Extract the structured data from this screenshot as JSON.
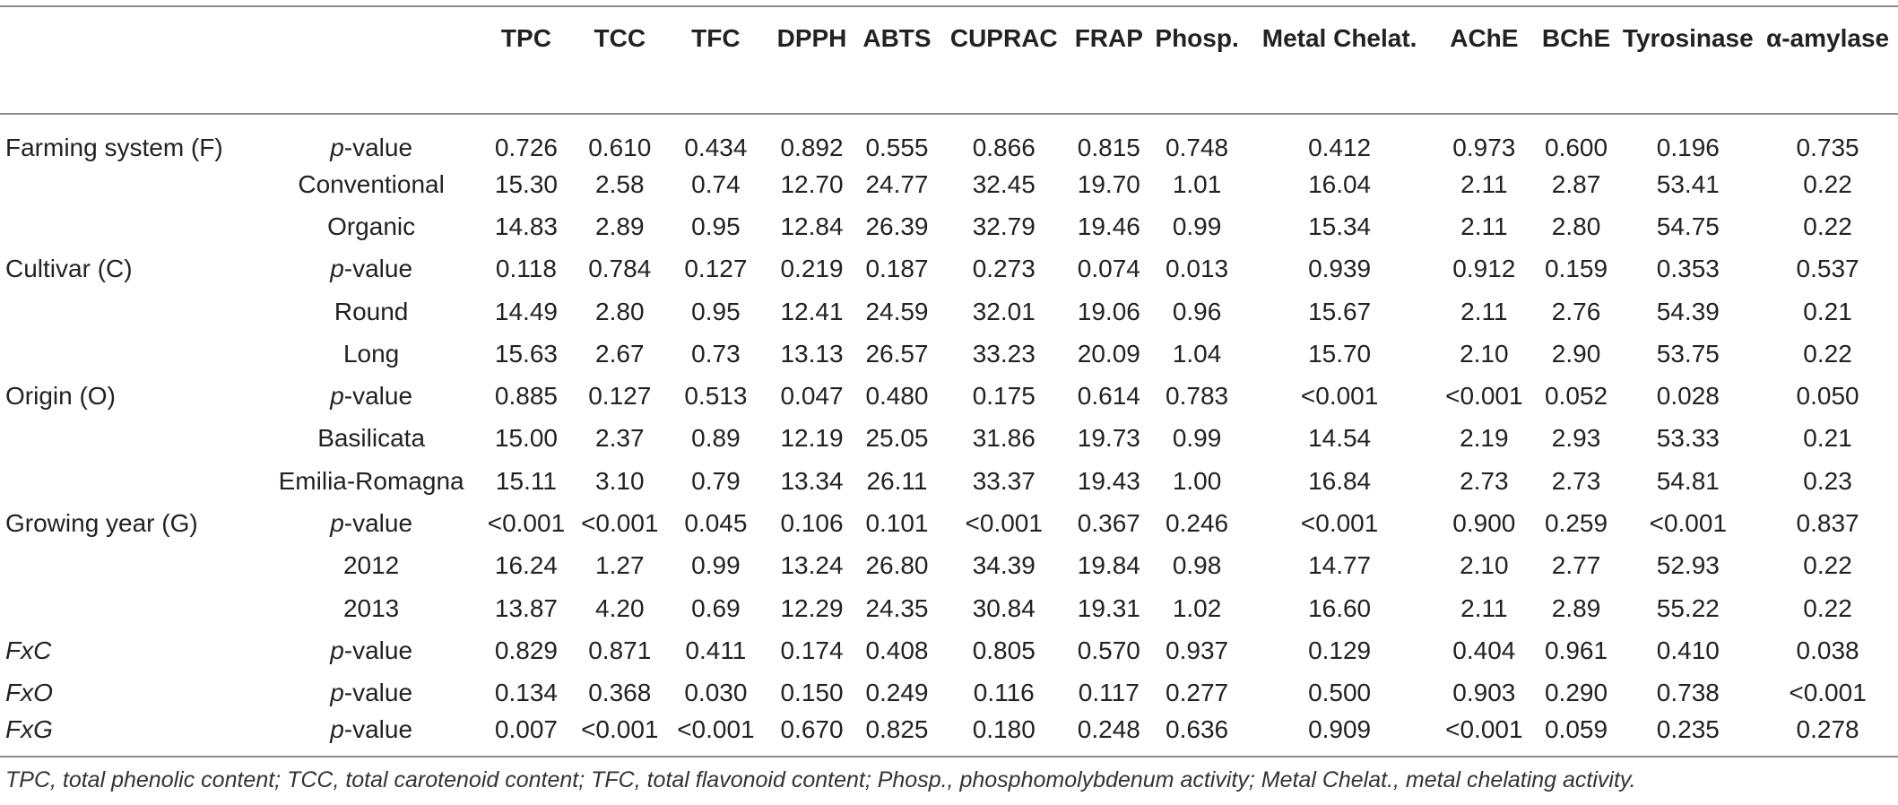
{
  "table": {
    "columns": [
      "TPC",
      "TCC",
      "TFC",
      "DPPH",
      "ABTS",
      "CUPRAC",
      "FRAP",
      "Phosp.",
      "Metal Chelat.",
      "AChE",
      "BChE",
      "Tyrosinase",
      "α-amylase"
    ],
    "rows": [
      {
        "group": "Farming system (F)",
        "group_italic": false,
        "level": "p-value",
        "pvalue": true,
        "values": [
          "0.726",
          "0.610",
          "0.434",
          "0.892",
          "0.555",
          "0.866",
          "0.815",
          "0.748",
          "0.412",
          "0.973",
          "0.600",
          "0.196",
          "0.735"
        ]
      },
      {
        "group": "",
        "level": "Conventional",
        "pvalue": false,
        "values": [
          "15.30",
          "2.58",
          "0.74",
          "12.70",
          "24.77",
          "32.45",
          "19.70",
          "1.01",
          "16.04",
          "2.11",
          "2.87",
          "53.41",
          "0.22"
        ]
      },
      {
        "group": "",
        "level": "Organic",
        "pvalue": false,
        "values": [
          "14.83",
          "2.89",
          "0.95",
          "12.84",
          "26.39",
          "32.79",
          "19.46",
          "0.99",
          "15.34",
          "2.11",
          "2.80",
          "54.75",
          "0.22"
        ]
      },
      {
        "group": "Cultivar (C)",
        "group_italic": false,
        "level": "p-value",
        "pvalue": true,
        "values": [
          "0.118",
          "0.784",
          "0.127",
          "0.219",
          "0.187",
          "0.273",
          "0.074",
          "0.013",
          "0.939",
          "0.912",
          "0.159",
          "0.353",
          "0.537"
        ]
      },
      {
        "group": "",
        "level": "Round",
        "pvalue": false,
        "values": [
          "14.49",
          "2.80",
          "0.95",
          "12.41",
          "24.59",
          "32.01",
          "19.06",
          "0.96",
          "15.67",
          "2.11",
          "2.76",
          "54.39",
          "0.21"
        ]
      },
      {
        "group": "",
        "level": "Long",
        "pvalue": false,
        "values": [
          "15.63",
          "2.67",
          "0.73",
          "13.13",
          "26.57",
          "33.23",
          "20.09",
          "1.04",
          "15.70",
          "2.10",
          "2.90",
          "53.75",
          "0.22"
        ]
      },
      {
        "group": "Origin (O)",
        "group_italic": false,
        "level": "p-value",
        "pvalue": true,
        "values": [
          "0.885",
          "0.127",
          "0.513",
          "0.047",
          "0.480",
          "0.175",
          "0.614",
          "0.783",
          "<0.001",
          "<0.001",
          "0.052",
          "0.028",
          "0.050"
        ]
      },
      {
        "group": "",
        "level": "Basilicata",
        "pvalue": false,
        "values": [
          "15.00",
          "2.37",
          "0.89",
          "12.19",
          "25.05",
          "31.86",
          "19.73",
          "0.99",
          "14.54",
          "2.19",
          "2.93",
          "53.33",
          "0.21"
        ]
      },
      {
        "group": "",
        "level": "Emilia-Romagna",
        "pvalue": false,
        "values": [
          "15.11",
          "3.10",
          "0.79",
          "13.34",
          "26.11",
          "33.37",
          "19.43",
          "1.00",
          "16.84",
          "2.73",
          "2.73",
          "54.81",
          "0.23"
        ]
      },
      {
        "group": "Growing year (G)",
        "group_italic": false,
        "level": "p-value",
        "pvalue": true,
        "values": [
          "<0.001",
          "<0.001",
          "0.045",
          "0.106",
          "0.101",
          "<0.001",
          "0.367",
          "0.246",
          "<0.001",
          "0.900",
          "0.259",
          "<0.001",
          "0.837"
        ]
      },
      {
        "group": "",
        "level": "2012",
        "pvalue": false,
        "values": [
          "16.24",
          "1.27",
          "0.99",
          "13.24",
          "26.80",
          "34.39",
          "19.84",
          "0.98",
          "14.77",
          "2.10",
          "2.77",
          "52.93",
          "0.22"
        ]
      },
      {
        "group": "",
        "level": "2013",
        "pvalue": false,
        "values": [
          "13.87",
          "4.20",
          "0.69",
          "12.29",
          "24.35",
          "30.84",
          "19.31",
          "1.02",
          "16.60",
          "2.11",
          "2.89",
          "55.22",
          "0.22"
        ]
      },
      {
        "group": "FxC",
        "group_italic": true,
        "level": "p-value",
        "pvalue": true,
        "values": [
          "0.829",
          "0.871",
          "0.411",
          "0.174",
          "0.408",
          "0.805",
          "0.570",
          "0.937",
          "0.129",
          "0.404",
          "0.961",
          "0.410",
          "0.038"
        ]
      },
      {
        "group": "FxO",
        "group_italic": true,
        "level": "p-value",
        "pvalue": true,
        "values": [
          "0.134",
          "0.368",
          "0.030",
          "0.150",
          "0.249",
          "0.116",
          "0.117",
          "0.277",
          "0.500",
          "0.903",
          "0.290",
          "0.738",
          "<0.001"
        ]
      },
      {
        "group": "FxG",
        "group_italic": true,
        "level": "p-value",
        "pvalue": true,
        "values": [
          "0.007",
          "<0.001",
          "<0.001",
          "0.670",
          "0.825",
          "0.180",
          "0.248",
          "0.636",
          "0.909",
          "<0.001",
          "0.059",
          "0.235",
          "0.278"
        ]
      }
    ]
  },
  "footnote": "TPC, total phenolic content; TCC, total carotenoid content; TFC, total flavonoid content; Phosp., phosphomolybdenum activity; Metal Chelat., metal chelating activity."
}
